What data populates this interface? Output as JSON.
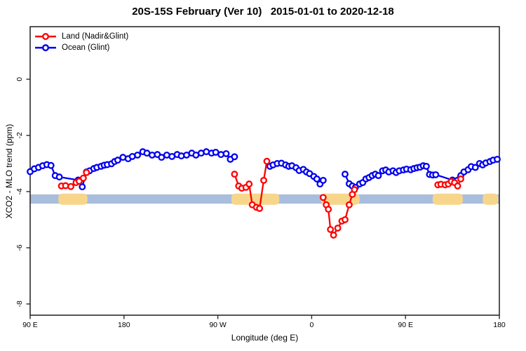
{
  "title": "20S-15S February (Ver 10)   2015-01-01 to 2020-12-18",
  "legend": {
    "items": [
      {
        "label": "Land (Nadir&Glint)",
        "color": "#ff0000"
      },
      {
        "label": "Ocean (Glint)",
        "color": "#0000ee"
      }
    ]
  },
  "axes": {
    "x_label": "Longitude (deg E)",
    "y_label": "XCO2 - MLO trend (ppm)"
  },
  "colors": {
    "land": "#ff0000",
    "ocean": "#0000ee",
    "reference_band": "#a9bedd",
    "land_shading": "#f7d68c",
    "axis": "#2b2b2b",
    "background": "#ffffff"
  },
  "chart_data": {
    "type": "line",
    "title": "20S-15S February (Ver 10)   2015-01-01 to 2020-12-18",
    "xlabel": "Longitude (deg E)",
    "ylabel": "XCO2 - MLO trend (ppm)",
    "xlim": [
      90,
      540
    ],
    "ylim": [
      -8.4,
      1.87
    ],
    "grid": false,
    "legend_position": "top-left",
    "x_ticks": {
      "values": [
        90,
        180,
        270,
        360,
        450,
        540
      ],
      "labels": [
        "90 E",
        "180",
        "90 W",
        "0",
        "90 E",
        "180"
      ]
    },
    "y_ticks": {
      "values": [
        0,
        -2,
        -4,
        -6,
        -8
      ],
      "labels": [
        "0",
        "-2",
        "-4",
        "-6",
        "-8"
      ]
    },
    "reference_band": {
      "y_top": -4.1,
      "y_bottom": -4.43,
      "color": "#a9bedd"
    },
    "land_shading": {
      "color": "#f7d68c",
      "y_top": -4.07,
      "y_bottom": -4.47,
      "lon_ranges": [
        [
          117,
          145
        ],
        [
          283,
          329
        ],
        [
          369,
          406
        ],
        [
          476,
          505
        ],
        [
          524,
          539
        ]
      ]
    },
    "series": [
      {
        "name": "Ocean (Glint)",
        "color": "#0000ee",
        "marker": "open-circle",
        "segments": [
          [
            [
              90,
              -3.29
            ],
            [
              94,
              -3.19
            ],
            [
              98,
              -3.14
            ],
            [
              102,
              -3.08
            ],
            [
              106,
              -3.04
            ],
            [
              110,
              -3.07
            ],
            [
              114,
              -3.43
            ],
            [
              118,
              -3.48
            ],
            [
              136,
              -3.59
            ],
            [
              140,
              -3.83
            ],
            [
              144,
              -3.3
            ],
            [
              147,
              -3.26
            ],
            [
              151,
              -3.18
            ],
            [
              154,
              -3.14
            ],
            [
              158,
              -3.1
            ],
            [
              161,
              -3.06
            ],
            [
              164,
              -3.04
            ],
            [
              168,
              -3.01
            ],
            [
              171,
              -2.93
            ],
            [
              174,
              -2.88
            ],
            [
              179,
              -2.78
            ],
            [
              184,
              -2.83
            ],
            [
              188,
              -2.75
            ],
            [
              193,
              -2.7
            ],
            [
              198,
              -2.58
            ],
            [
              202,
              -2.63
            ],
            [
              207,
              -2.7
            ],
            [
              212,
              -2.68
            ],
            [
              216,
              -2.78
            ],
            [
              221,
              -2.7
            ],
            [
              226,
              -2.75
            ],
            [
              231,
              -2.68
            ],
            [
              235,
              -2.73
            ],
            [
              240,
              -2.7
            ],
            [
              245,
              -2.63
            ],
            [
              249,
              -2.7
            ],
            [
              254,
              -2.63
            ],
            [
              259,
              -2.58
            ],
            [
              264,
              -2.63
            ],
            [
              268,
              -2.6
            ],
            [
              273,
              -2.68
            ],
            [
              278,
              -2.65
            ],
            [
              282,
              -2.85
            ],
            [
              286,
              -2.76
            ]
          ],
          [
            [
              320,
              -3.1
            ],
            [
              323,
              -3.05
            ],
            [
              327,
              -3.0
            ],
            [
              331,
              -2.99
            ],
            [
              335,
              -3.05
            ],
            [
              338,
              -3.1
            ],
            [
              341,
              -3.08
            ],
            [
              345,
              -3.15
            ],
            [
              348,
              -3.25
            ],
            [
              352,
              -3.21
            ],
            [
              355,
              -3.3
            ],
            [
              358,
              -3.36
            ],
            [
              362,
              -3.46
            ],
            [
              365,
              -3.55
            ],
            [
              368,
              -3.73
            ],
            [
              371,
              -3.6
            ]
          ],
          [
            [
              392,
              -3.38
            ],
            [
              396,
              -3.72
            ],
            [
              399,
              -3.8
            ],
            [
              402,
              -3.85
            ],
            [
              406,
              -3.73
            ],
            [
              409,
              -3.68
            ],
            [
              412,
              -3.55
            ],
            [
              415,
              -3.5
            ],
            [
              418,
              -3.43
            ],
            [
              421,
              -3.38
            ],
            [
              424,
              -3.43
            ],
            [
              428,
              -3.26
            ],
            [
              431,
              -3.23
            ],
            [
              434,
              -3.3
            ],
            [
              438,
              -3.26
            ],
            [
              441,
              -3.32
            ],
            [
              444,
              -3.26
            ],
            [
              448,
              -3.23
            ],
            [
              451,
              -3.2
            ],
            [
              455,
              -3.22
            ],
            [
              458,
              -3.18
            ],
            [
              461,
              -3.15
            ],
            [
              464,
              -3.13
            ],
            [
              467,
              -3.08
            ],
            [
              470,
              -3.1
            ],
            [
              473,
              -3.39
            ],
            [
              476,
              -3.41
            ],
            [
              479,
              -3.4
            ],
            [
              495,
              -3.59
            ],
            [
              503,
              -3.43
            ],
            [
              506,
              -3.3
            ],
            [
              510,
              -3.22
            ],
            [
              513,
              -3.11
            ],
            [
              517,
              -3.14
            ],
            [
              521,
              -3.0
            ],
            [
              524,
              -3.05
            ],
            [
              527,
              -2.98
            ],
            [
              531,
              -2.93
            ],
            [
              534,
              -2.88
            ],
            [
              538,
              -2.85
            ]
          ]
        ]
      },
      {
        "name": "Land (Nadir&Glint)",
        "color": "#ff0000",
        "marker": "open-circle",
        "segments": [
          [
            [
              120,
              -3.8
            ],
            [
              124,
              -3.79
            ],
            [
              129,
              -3.82
            ],
            [
              134,
              -3.68
            ],
            [
              137,
              -3.63
            ],
            [
              141,
              -3.52
            ],
            [
              144,
              -3.32
            ]
          ],
          [
            [
              286,
              -3.38
            ],
            [
              290,
              -3.8
            ],
            [
              293,
              -3.88
            ],
            [
              297,
              -3.85
            ],
            [
              300,
              -3.73
            ],
            [
              303,
              -4.47
            ],
            [
              307,
              -4.56
            ],
            [
              310,
              -4.6
            ],
            [
              314,
              -3.6
            ],
            [
              317,
              -2.92
            ]
          ],
          [
            [
              371,
              -4.21
            ],
            [
              374,
              -4.47
            ],
            [
              376,
              -4.63
            ],
            [
              378,
              -5.35
            ],
            [
              381,
              -5.55
            ],
            [
              385,
              -5.3
            ],
            [
              389,
              -5.05
            ],
            [
              392,
              -5.0
            ],
            [
              396,
              -4.47
            ],
            [
              399,
              -4.1
            ],
            [
              401,
              -3.93
            ]
          ],
          [
            [
              481,
              -3.76
            ],
            [
              484,
              -3.74
            ],
            [
              488,
              -3.76
            ],
            [
              491,
              -3.73
            ],
            [
              494,
              -3.64
            ],
            [
              497,
              -3.68
            ],
            [
              500,
              -3.8
            ],
            [
              503,
              -3.55
            ]
          ]
        ]
      }
    ]
  }
}
